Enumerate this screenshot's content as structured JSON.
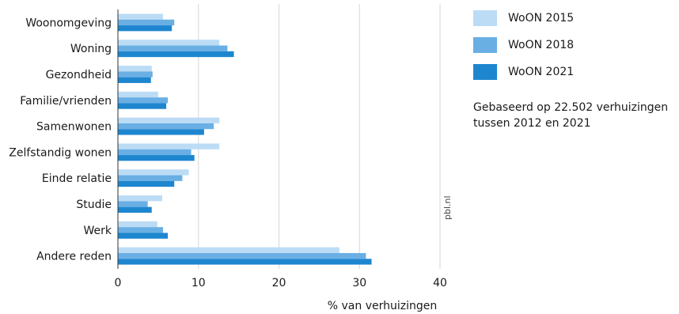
{
  "chart_data": {
    "type": "bar",
    "orientation": "horizontal",
    "categories": [
      "Woonomgeving",
      "Woning",
      "Gezondheid",
      "Familie/vrienden",
      "Samenwonen",
      "Zelfstandig wonen",
      "Einde relatie",
      "Studie",
      "Werk",
      "Andere reden"
    ],
    "series": [
      {
        "name": "WoON 2015",
        "color": "#bcdcf5",
        "values": [
          5.6,
          12.6,
          4.2,
          5.0,
          12.6,
          12.6,
          8.8,
          5.5,
          4.9,
          27.5
        ]
      },
      {
        "name": "WoON 2018",
        "color": "#6aafe4",
        "values": [
          7.0,
          13.6,
          4.3,
          6.2,
          11.9,
          9.1,
          8.0,
          3.7,
          5.6,
          30.8
        ]
      },
      {
        "name": "WoON 2021",
        "color": "#1e86cf",
        "values": [
          6.7,
          14.4,
          4.1,
          6.0,
          10.7,
          9.5,
          7.0,
          4.2,
          6.2,
          31.5
        ]
      }
    ],
    "xlabel": "% van verhuizingen",
    "xlim": [
      0,
      40
    ],
    "xticks": [
      0,
      10,
      20,
      30,
      40
    ],
    "grid": "vertical",
    "legend_position": "top-right"
  },
  "note": "Gebaseerd op 22.502 verhuizingen tussen 2012 en 2021",
  "watermark": "pbl.nl"
}
